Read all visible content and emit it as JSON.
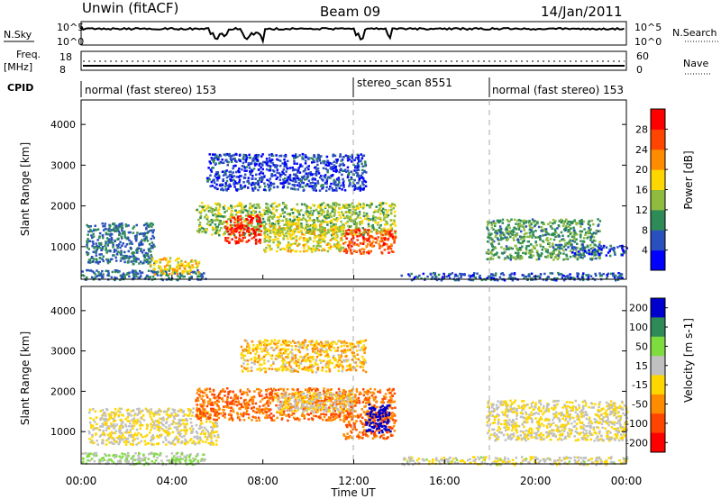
{
  "header": {
    "station": "Unwin (fitACF)",
    "beam": "Beam 09",
    "date": "14/Jan/2011"
  },
  "panels": {
    "nsky": {
      "left_label": "N.Sky",
      "right_label": "N.Search",
      "left_ticks": [
        "10^5",
        "10^0"
      ],
      "right_ticks": [
        "10^5",
        "10^0"
      ]
    },
    "freq": {
      "left_label": "Freq.",
      "left_unit": "[MHz]",
      "left_ticks": [
        "18",
        "8"
      ],
      "right_label": "Nave",
      "right_ticks": [
        "60",
        "0"
      ]
    },
    "cpid": {
      "label": "CPID",
      "segments": [
        {
          "text": "normal (fast stereo) 153",
          "start_hour": 0,
          "end_hour": 12
        },
        {
          "text": "stereo_scan 8551",
          "start_hour": 12,
          "end_hour": 18
        },
        {
          "text": "normal (fast stereo) 153",
          "start_hour": 18,
          "end_hour": 24
        }
      ]
    }
  },
  "chart_data": [
    {
      "type": "heatmap",
      "name": "power",
      "ylabel": "Slant Range [km]",
      "xlim": [
        0,
        24
      ],
      "ylim": [
        200,
        4600
      ],
      "yticks": [
        "1000",
        "2000",
        "3000",
        "4000"
      ],
      "x_tick_hours": [
        0,
        4,
        8,
        12,
        16,
        20,
        24
      ],
      "colorbar": {
        "label": "Power [dB]",
        "ticks": [
          "4",
          "8",
          "12",
          "16",
          "20",
          "24",
          "28"
        ],
        "range": [
          0,
          32
        ],
        "colors": [
          "#0000ff",
          "#2a4fbe",
          "#2e8b57",
          "#8fbc3f",
          "#ffd700",
          "#ff8c00",
          "#ff4500",
          "#ff0000"
        ]
      },
      "echo_regions": [
        {
          "t0": 0.0,
          "t1": 5.5,
          "r0": 200,
          "r1": 450,
          "db": 8
        },
        {
          "t0": 0.2,
          "t1": 3.2,
          "r0": 600,
          "r1": 1600,
          "db": 8
        },
        {
          "t0": 3.0,
          "t1": 5.2,
          "r0": 350,
          "r1": 750,
          "db": 18
        },
        {
          "t0": 5.0,
          "t1": 13.8,
          "r0": 1300,
          "r1": 2100,
          "db": 14
        },
        {
          "t0": 6.3,
          "t1": 7.9,
          "r0": 1100,
          "r1": 1800,
          "db": 29
        },
        {
          "t0": 8.0,
          "t1": 11.5,
          "r0": 900,
          "r1": 1600,
          "db": 17
        },
        {
          "t0": 11.5,
          "t1": 13.8,
          "r0": 850,
          "r1": 1450,
          "db": 26
        },
        {
          "t0": 5.5,
          "t1": 12.5,
          "r0": 2400,
          "r1": 3300,
          "db": 5
        },
        {
          "t0": 14.0,
          "t1": 24.0,
          "r0": 200,
          "r1": 380,
          "db": 6
        },
        {
          "t0": 17.8,
          "t1": 22.8,
          "r0": 700,
          "r1": 1700,
          "db": 11
        },
        {
          "t0": 21.5,
          "t1": 24.0,
          "r0": 800,
          "r1": 1050,
          "db": 5
        }
      ]
    },
    {
      "type": "heatmap",
      "name": "velocity",
      "ylabel": "Slant Range [km]",
      "xlabel": "Time UT",
      "xlim": [
        0,
        24
      ],
      "ylim": [
        200,
        4600
      ],
      "yticks": [
        "1000",
        "2000",
        "3000",
        "4000"
      ],
      "xticks": [
        "00:00",
        "04:00",
        "08:00",
        "12:00",
        "16:00",
        "20:00",
        "00:00"
      ],
      "x_tick_hours": [
        0,
        4,
        8,
        12,
        16,
        20,
        24
      ],
      "colorbar": {
        "label": "Velocity [m s-1]",
        "ticks": [
          "200",
          "100",
          "50",
          "15",
          "-15",
          "-50",
          "-100",
          "-200"
        ],
        "colors": [
          "#0000cd",
          "#2e8b57",
          "#7fdc3f",
          "#c0c0c0",
          "#ffd700",
          "#ff8c00",
          "#ff4500",
          "#ff0000"
        ]
      },
      "echo_regions": [
        {
          "t0": 0.0,
          "t1": 5.5,
          "r0": 200,
          "r1": 500,
          "v": 30
        },
        {
          "t0": 0.3,
          "t1": 6.0,
          "r0": 700,
          "r1": 1600,
          "v": 0
        },
        {
          "t0": 5.0,
          "t1": 13.8,
          "r0": 1300,
          "r1": 2100,
          "v": -70
        },
        {
          "t0": 8.5,
          "t1": 12.0,
          "r0": 1500,
          "r1": 2000,
          "v": 0
        },
        {
          "t0": 11.5,
          "t1": 13.8,
          "r0": 850,
          "r1": 1500,
          "v": -80
        },
        {
          "t0": 12.5,
          "t1": 13.6,
          "r0": 1000,
          "r1": 1700,
          "v": 180
        },
        {
          "t0": 7.0,
          "t1": 12.5,
          "r0": 2500,
          "r1": 3300,
          "v": -20
        },
        {
          "t0": 14.0,
          "t1": 24.0,
          "r0": 200,
          "r1": 400,
          "v": 5
        },
        {
          "t0": 17.8,
          "t1": 24.0,
          "r0": 800,
          "r1": 1800,
          "v": 0
        }
      ]
    }
  ]
}
